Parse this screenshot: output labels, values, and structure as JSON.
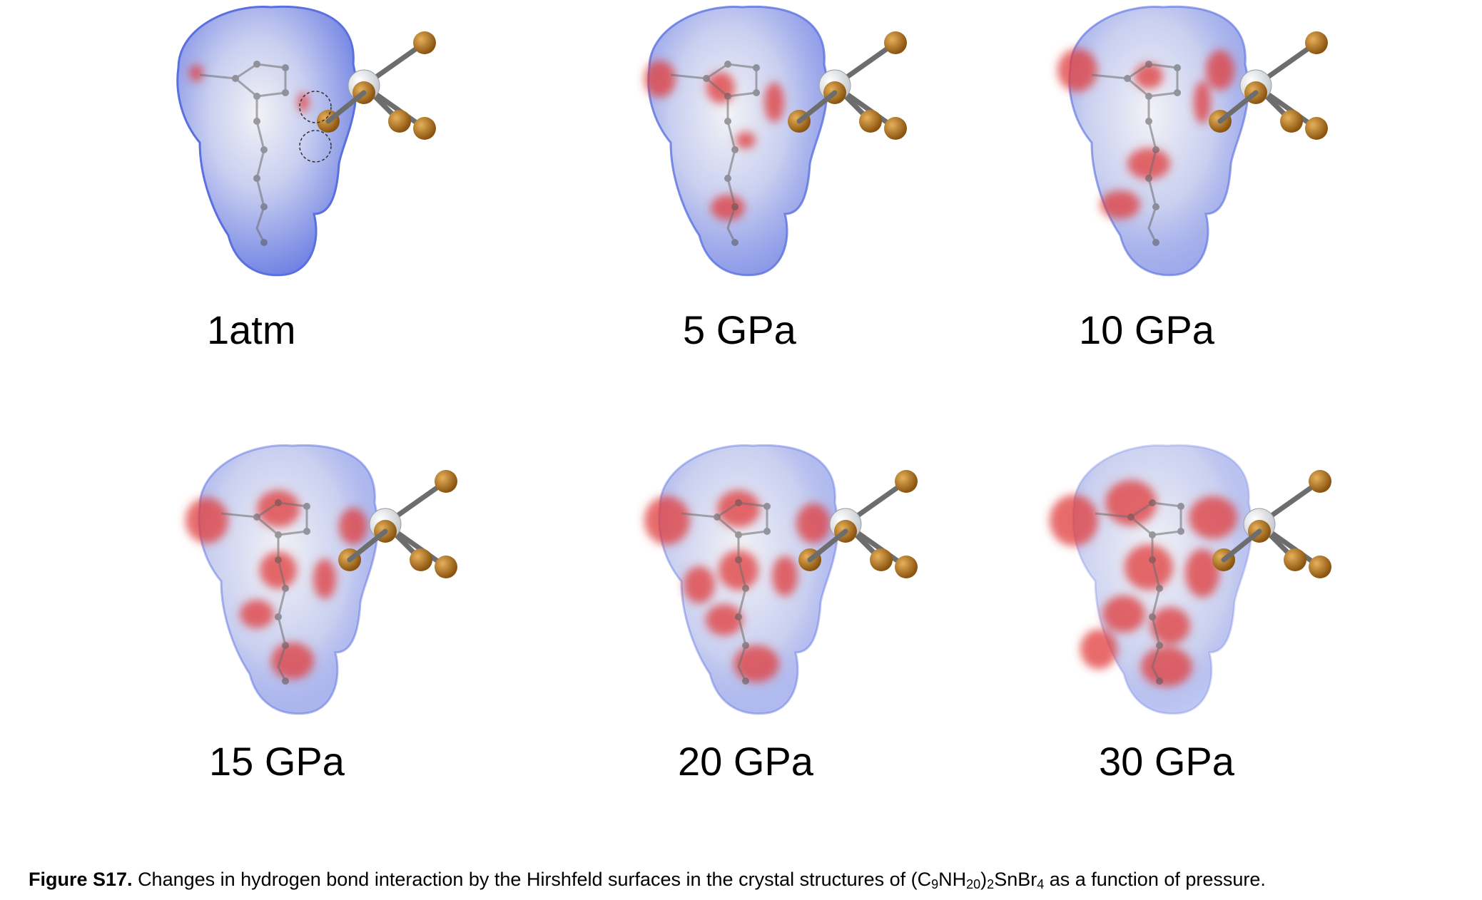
{
  "panels": [
    {
      "label": "1atm",
      "variant": 0
    },
    {
      "label": "5 GPa",
      "variant": 1
    },
    {
      "label": "10 GPa",
      "variant": 2
    },
    {
      "label": "15 GPa",
      "variant": 3
    },
    {
      "label": "20 GPa",
      "variant": 4
    },
    {
      "label": "30 GPa",
      "variant": 5
    }
  ],
  "caption": {
    "figure_label": "Figure S17.",
    "text_part1": "Changes in hydrogen bond interaction by the Hirshfeld surfaces in the crystal structures of (C",
    "sub1": "9",
    "text_part2": "NH",
    "sub2": "20",
    "text_part3": ")",
    "sub3": "2",
    "text_part4": "SnBr",
    "sub4": "4",
    "text_part5": " as a function of pressure."
  },
  "colors": {
    "surface_blue": "#5a6fe0",
    "surface_white": "#f2f2f6",
    "surface_red": "#e03a3a",
    "bromine": "#b87a24",
    "tin": "#c8ccd0",
    "bond": "#6d6d6d"
  }
}
